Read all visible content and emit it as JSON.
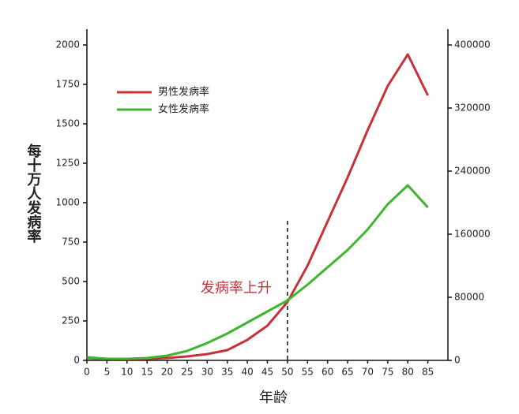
{
  "chart_data": {
    "type": "line",
    "x_label": "年龄",
    "y_label": "每十万人发病率",
    "x": [
      0,
      5,
      10,
      15,
      20,
      25,
      30,
      35,
      40,
      45,
      50,
      55,
      60,
      65,
      70,
      75,
      80,
      85
    ],
    "series": [
      {
        "name": "男性发病率",
        "color": "#c8313a",
        "values": [
          15,
          10,
          8,
          10,
          15,
          25,
          40,
          65,
          130,
          220,
          370,
          600,
          880,
          1160,
          1460,
          1740,
          1940,
          1680
        ]
      },
      {
        "name": "女性发病率",
        "color": "#3db52c",
        "values": [
          20,
          10,
          10,
          15,
          30,
          60,
          110,
          170,
          240,
          310,
          380,
          480,
          590,
          700,
          830,
          990,
          1110,
          970
        ]
      }
    ],
    "xlim": [
      0,
      90
    ],
    "xticks": [
      0,
      5,
      10,
      15,
      20,
      25,
      30,
      35,
      40,
      45,
      50,
      55,
      60,
      65,
      70,
      75,
      80,
      85
    ],
    "ylim": [
      0,
      2000
    ],
    "yticks": [
      0,
      250,
      500,
      750,
      1000,
      1250,
      1500,
      1750,
      2000
    ],
    "y2lim": [
      0,
      400000
    ],
    "y2ticks": [
      0,
      80000,
      160000,
      240000,
      320000,
      400000
    ],
    "annotation": {
      "text": "发病率上升",
      "color": "#c8313a",
      "x": 50
    },
    "legend": "upper left"
  }
}
